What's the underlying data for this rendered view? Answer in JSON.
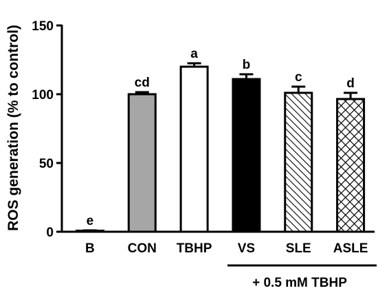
{
  "chart_data": {
    "type": "bar",
    "title": "",
    "xlabel": "",
    "ylabel": "ROS generation (% to control)",
    "ylim": [
      0,
      150
    ],
    "yticks": [
      "0",
      "50",
      "100",
      "150"
    ],
    "categories": [
      "B",
      "CON",
      "TBHP",
      "VS",
      "SLE",
      "ASLE"
    ],
    "values": [
      0.5,
      100,
      120,
      111,
      101,
      96.5
    ],
    "errors": [
      0.5,
      1.5,
      2.5,
      3.5,
      4.5,
      4.5
    ],
    "significance_letters": [
      "e",
      "cd",
      "a",
      "b",
      "c",
      "d"
    ],
    "fills": [
      "white",
      "gray",
      "white",
      "black",
      "diagonal-hatch",
      "crosshatch"
    ],
    "bar_colors": {
      "gray": "#a6a6a6",
      "black": "#000000",
      "white": "#ffffff"
    },
    "treatment_group": {
      "label": "+ 0.5 mM TBHP",
      "categories": [
        "VS",
        "SLE",
        "ASLE"
      ]
    },
    "grid": false,
    "legend": "none"
  }
}
